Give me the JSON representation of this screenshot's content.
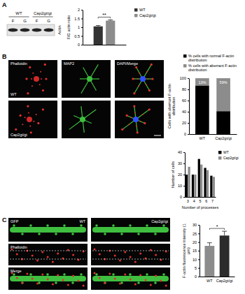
{
  "figure": {
    "panel_labels": [
      "A",
      "B",
      "C"
    ],
    "blot": {
      "groups": [
        "WT",
        "Cap2gt/gt"
      ],
      "lanes": [
        "F",
        "G",
        "F",
        "G"
      ],
      "protein": "Actin"
    },
    "panel_b_images": {
      "columns": [
        "Phalloidin",
        "MAP2",
        "DAPI/Merge"
      ],
      "rows": [
        "WT",
        "Cap2gt/gt"
      ]
    },
    "panel_c_images": {
      "columns": [
        "WT",
        "Cap2gt/gt"
      ],
      "rows": [
        "GFP",
        "Phalloidin",
        "Merge"
      ]
    }
  },
  "chart_data": [
    {
      "type": "bar",
      "y_label": "F/G actin ratio",
      "categories": [
        null
      ],
      "series": [
        {
          "name": "WT",
          "color": "#333333",
          "values": [
            1.05
          ],
          "errors": [
            0.05
          ]
        },
        {
          "name": "Cap2gt/gt",
          "color": "#8c8c8c",
          "values": [
            1.38
          ],
          "errors": [
            0.04
          ]
        }
      ],
      "ylim": [
        0,
        2
      ],
      "yticks": [
        0,
        0.5,
        1,
        1.5,
        2
      ],
      "legend": "right",
      "tick_labels": "y",
      "annotations": [
        "**"
      ]
    },
    {
      "type": "bar",
      "stacked": true,
      "y_label": "Cells with aberrant F-actin distribution",
      "categories": [
        "WT",
        "Cap2gt/gt"
      ],
      "series": [
        {
          "name": "% cells with normal F-actin distribution",
          "color": "#000000",
          "values": [
            87,
            41
          ]
        },
        {
          "name": "% cells with aberrant F-actin distribution",
          "color": "#8c8c8c",
          "values": [
            13,
            59
          ],
          "data_labels": true,
          "value_labels": [
            "13%",
            "59%"
          ]
        }
      ],
      "ylim": [
        0,
        100
      ],
      "yticks": [
        0,
        20,
        40,
        60,
        80,
        100
      ],
      "legend": "top"
    },
    {
      "type": "bar",
      "x_label": "Number of processes",
      "y_label": "Number of cells",
      "categories": [
        "3",
        "4",
        "5",
        "6",
        "7"
      ],
      "series": [
        {
          "name": "WT",
          "color": "#000000",
          "values": [
            20,
            20,
            34,
            26,
            19
          ]
        },
        {
          "name": "Cap2gt/gt",
          "color": "#8c8c8c",
          "values": [
            27,
            20,
            29,
            24,
            18
          ]
        }
      ],
      "ylim": [
        0,
        40
      ],
      "yticks": [
        0,
        10,
        20,
        30,
        40
      ],
      "legend": "right"
    },
    {
      "type": "bar",
      "y_label": "F-actin fluorescence Intensity (1 μm)",
      "categories": [
        "WT",
        "Cap2gt/gt"
      ],
      "values": [
        17.8,
        23.8
      ],
      "errors": [
        1.8,
        2.5
      ],
      "colors": [
        "#8c8c8c",
        "#2b2b2b"
      ],
      "ylim": [
        0,
        30
      ],
      "yticks": [
        0,
        5,
        10,
        15,
        20,
        25,
        30
      ],
      "annotations": [
        "*"
      ]
    }
  ]
}
